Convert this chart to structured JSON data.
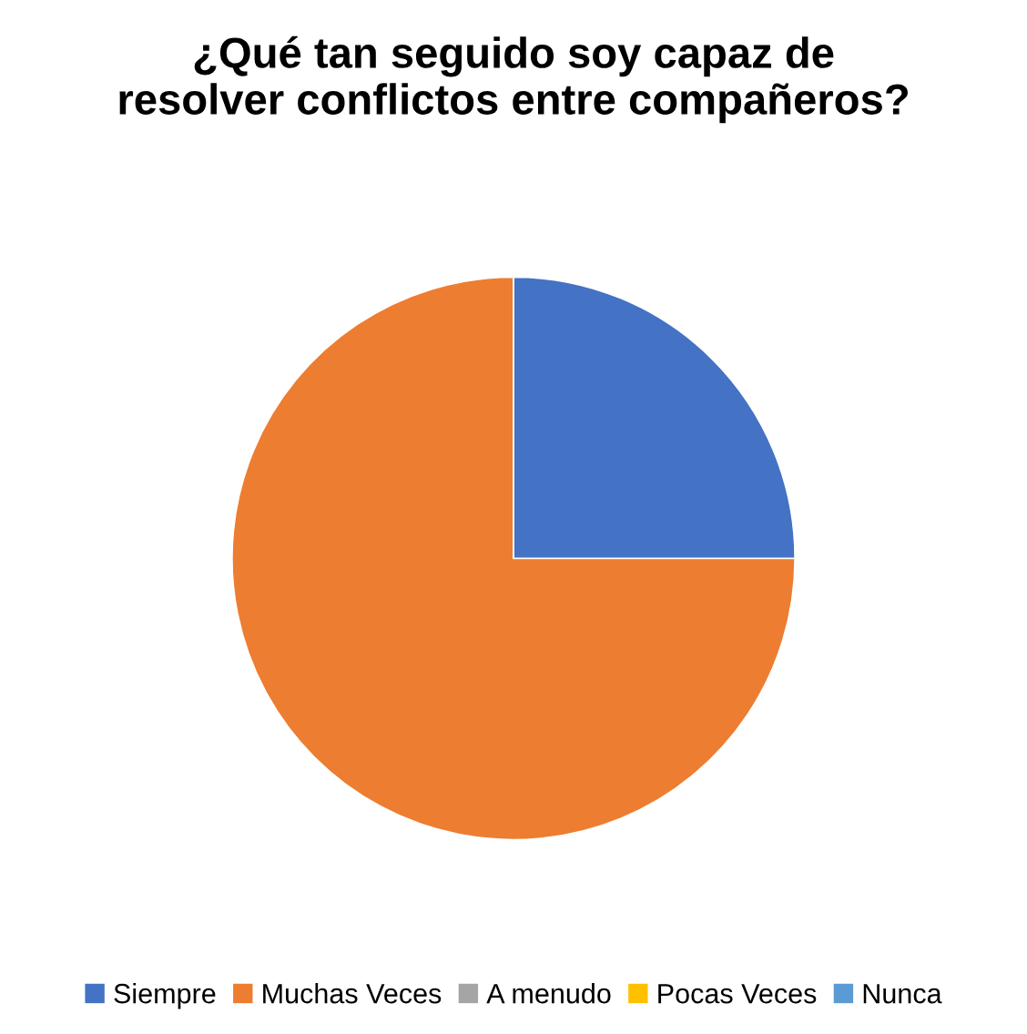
{
  "chart_data": {
    "type": "pie",
    "title": "¿Qué tan seguido soy capaz de\nresolver conflictos entre compañeros?",
    "categories": [
      "Siempre",
      "Muchas Veces",
      "A menudo",
      "Pocas Veces",
      "Nunca"
    ],
    "values": [
      25,
      75,
      0,
      0,
      0
    ],
    "colors": [
      "#4472c4",
      "#ed7d31",
      "#a5a5a5",
      "#ffc000",
      "#5b9bd5"
    ],
    "legend": "bottom"
  }
}
